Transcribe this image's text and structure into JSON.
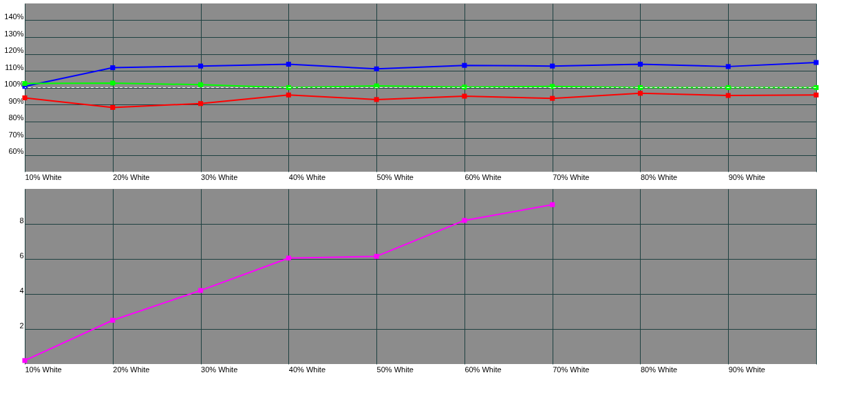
{
  "chart_data": [
    {
      "type": "line",
      "categories": [
        "10% White",
        "20% White",
        "30% White",
        "40% White",
        "50% White",
        "60% White",
        "70% White",
        "80% White",
        "90% White",
        null
      ],
      "series": [
        {
          "color": "#0000ff",
          "values": [
            100.7,
            111.8,
            112.8,
            113.9,
            111.1,
            113.2,
            112.8,
            113.9,
            112.5,
            114.9
          ]
        },
        {
          "color": "#00ff00",
          "values": [
            102.4,
            102.7,
            101.7,
            100,
            101,
            100.3,
            100.7,
            100,
            100,
            100
          ]
        },
        {
          "color": "#ff0000",
          "values": [
            93.9,
            88.2,
            90.5,
            95.6,
            92.9,
            94.9,
            93.6,
            96.6,
            95.3,
            95.6
          ]
        }
      ],
      "ylim": [
        50,
        150
      ],
      "yticks": [
        {
          "value": 60,
          "label": "60%"
        },
        {
          "value": 70,
          "label": "70%"
        },
        {
          "value": 80,
          "label": "80%"
        },
        {
          "value": 90,
          "label": "90%"
        },
        {
          "value": 100,
          "label": "100%"
        },
        {
          "value": 110,
          "label": "110%"
        },
        {
          "value": 120,
          "label": "120%"
        },
        {
          "value": 130,
          "label": "130%"
        },
        {
          "value": 140,
          "label": "140%"
        }
      ],
      "ref_lines": [
        {
          "axis": "y",
          "value": 100,
          "color": "#ffffff",
          "line_style": "dashed"
        }
      ],
      "grid": true,
      "marker": "square",
      "line_style": "solid"
    },
    {
      "type": "line",
      "categories": [
        "10% White",
        "20% White",
        "30% White",
        "40% White",
        "50% White",
        "60% White",
        "70% White",
        "80% White",
        "90% White",
        null
      ],
      "series": [
        {
          "color": "#ff00ff",
          "values": [
            0.2,
            2.5,
            4.2,
            6.05,
            6.15,
            8.2,
            9.1,
            null,
            null,
            null
          ]
        }
      ],
      "ylim": [
        0,
        10
      ],
      "yticks": [
        2,
        4,
        6,
        8
      ],
      "grid": true,
      "marker": "square",
      "line_style": "solid"
    }
  ]
}
